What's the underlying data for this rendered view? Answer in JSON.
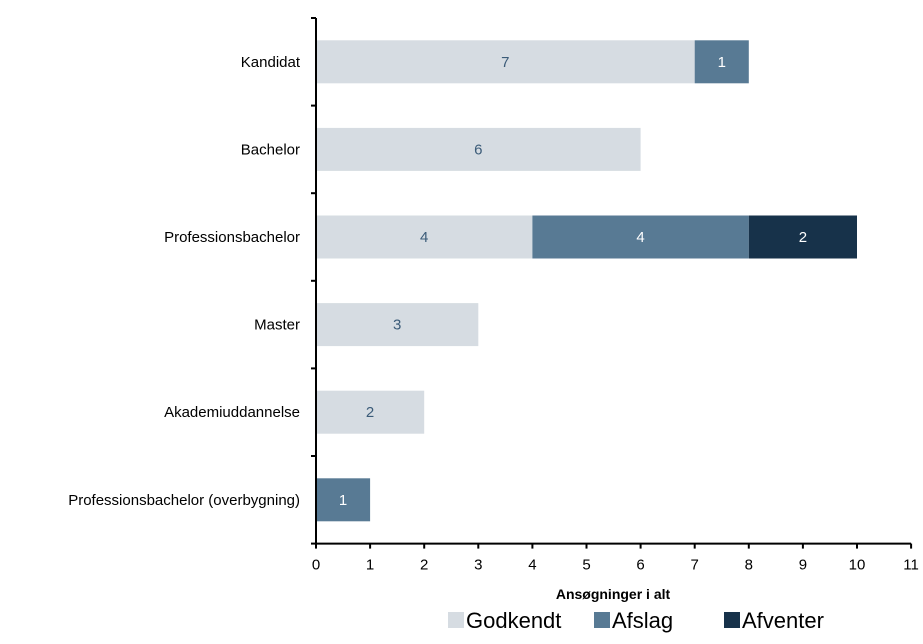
{
  "chart_data": {
    "type": "bar",
    "orientation": "horizontal",
    "stacked": true,
    "categories": [
      "Kandidat",
      "Bachelor",
      "Professionsbachelor",
      "Master",
      "Akademiuddannelse",
      "Professionsbachelor (overbygning)"
    ],
    "series": [
      {
        "name": "Godkendt",
        "color": "#d6dce2",
        "label_color": "#3b5b78",
        "values": [
          7,
          6,
          4,
          3,
          2,
          0
        ]
      },
      {
        "name": "Afslag",
        "color": "#587a94",
        "label_color": "#ffffff",
        "values": [
          1,
          0,
          4,
          0,
          0,
          1
        ]
      },
      {
        "name": "Afventer",
        "color": "#17324a",
        "label_color": "#ffffff",
        "values": [
          0,
          0,
          2,
          0,
          0,
          0
        ]
      }
    ],
    "xlabel": "Ansøgninger i alt",
    "xlim": [
      0,
      11
    ],
    "xticks": [
      0,
      1,
      2,
      3,
      4,
      5,
      6,
      7,
      8,
      9,
      10,
      11
    ],
    "grid": false,
    "legend_position": "bottom"
  }
}
